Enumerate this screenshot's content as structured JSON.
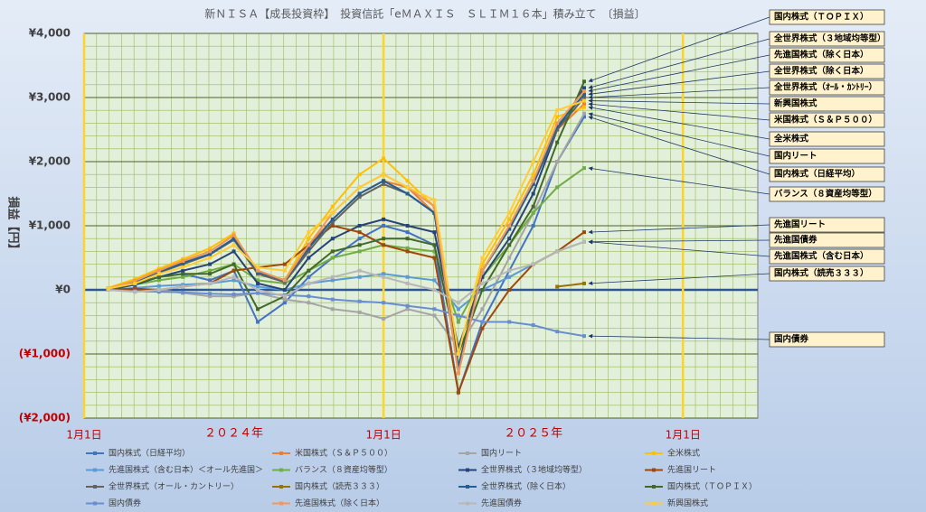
{
  "chart_data": {
    "type": "line",
    "title": "新ＮＩＳＡ【成長投資枠】　投資信託「eＭＡＸＩＳ　ＳＬＩＭ１６本」積み立て　〔損益〕",
    "ylabel": "損益【円】",
    "x": [
      2024.08,
      2024.17,
      2024.25,
      2024.33,
      2024.42,
      2024.5,
      2024.58,
      2024.67,
      2024.75,
      2024.83,
      2024.92,
      2025.0,
      2025.08,
      2025.17,
      2025.25,
      2025.33,
      2025.42,
      2025.5,
      2025.58,
      2025.67
    ],
    "xlim": [
      2024,
      2026.25
    ],
    "xticks": [
      {
        "value": 2024,
        "label": "1月1日"
      },
      {
        "value": 2025,
        "label": "1月1日"
      },
      {
        "value": 2026,
        "label": "1月1日"
      }
    ],
    "year_labels": [
      {
        "value": 2024.5,
        "label": "２０２４年"
      },
      {
        "value": 2025.5,
        "label": "２０２５年"
      }
    ],
    "ylim": [
      -2000,
      4000
    ],
    "yticks": [
      {
        "value": -2000,
        "label": "(¥2,000)"
      },
      {
        "value": -1000,
        "label": "(¥1,000)"
      },
      {
        "value": 0,
        "label": "¥0"
      },
      {
        "value": 1000,
        "label": "¥1,000"
      },
      {
        "value": 2000,
        "label": "¥2,000"
      },
      {
        "value": 3000,
        "label": "¥3,000"
      },
      {
        "value": 4000,
        "label": "¥4,000"
      }
    ],
    "grid": true,
    "series": [
      {
        "name": "国内株式（日経平均）",
        "color": "#4472c4",
        "values": [
          0,
          100,
          200,
          250,
          150,
          300,
          -500,
          -200,
          200,
          500,
          800,
          1000,
          900,
          700,
          -1600,
          -500,
          300,
          1000,
          2000,
          2700
        ]
      },
      {
        "name": "米国株式（Ｓ＆Ｐ５００）",
        "color": "#ed7d31",
        "values": [
          20,
          150,
          300,
          450,
          600,
          850,
          300,
          150,
          700,
          1100,
          1500,
          1700,
          1600,
          1200,
          -1300,
          300,
          1000,
          1700,
          2500,
          2900
        ]
      },
      {
        "name": "国内リート",
        "color": "#a5a5a5",
        "values": [
          0,
          -30,
          0,
          -50,
          -100,
          -100,
          -50,
          -150,
          -200,
          -300,
          -350,
          -450,
          -300,
          -400,
          -900,
          -300,
          500,
          1200,
          2000,
          2750
        ]
      },
      {
        "name": "全米株式",
        "color": "#ffc000",
        "values": [
          30,
          170,
          330,
          480,
          650,
          880,
          250,
          150,
          800,
          1300,
          1800,
          2050,
          1700,
          1300,
          -1200,
          400,
          1100,
          1800,
          2700,
          2850
        ]
      },
      {
        "name": "先進国株式（含む日本）＜オール先進国＞",
        "color": "#5b9bd5",
        "values": [
          0,
          30,
          60,
          80,
          100,
          150,
          50,
          0,
          100,
          150,
          200,
          250,
          200,
          150,
          -300,
          0,
          200,
          400,
          600,
          750
        ]
      },
      {
        "name": "バランス（８資産均等型）",
        "color": "#70ad47",
        "values": [
          10,
          80,
          150,
          200,
          300,
          400,
          150,
          100,
          300,
          500,
          600,
          700,
          650,
          600,
          -500,
          200,
          700,
          1200,
          1600,
          1900
        ]
      },
      {
        "name": "全世界株式（３地域均等型）",
        "color": "#264478",
        "values": [
          0,
          80,
          200,
          300,
          400,
          600,
          100,
          0,
          500,
          800,
          1000,
          1100,
          1000,
          900,
          -900,
          200,
          800,
          1500,
          2500,
          3150
        ]
      },
      {
        "name": "先進国リート",
        "color": "#9e480e",
        "values": [
          0,
          20,
          0,
          50,
          100,
          300,
          350,
          400,
          700,
          1000,
          900,
          700,
          600,
          500,
          -1600,
          -600,
          0,
          400,
          600,
          900
        ]
      },
      {
        "name": "全世界株式（オール・カントリー）",
        "color": "#636363",
        "values": [
          15,
          120,
          270,
          400,
          550,
          780,
          250,
          120,
          600,
          1050,
          1450,
          1650,
          1500,
          1200,
          -1200,
          300,
          950,
          1650,
          2500,
          3000
        ]
      },
      {
        "name": "国内株式（読売３３３）",
        "color": "#997300",
        "values": [
          null,
          null,
          null,
          null,
          null,
          null,
          null,
          null,
          null,
          null,
          null,
          null,
          null,
          null,
          null,
          null,
          null,
          null,
          50,
          100
        ]
      },
      {
        "name": "全世界株式（除く日本）",
        "color": "#255e91",
        "values": [
          15,
          120,
          280,
          420,
          560,
          800,
          280,
          150,
          650,
          1100,
          1500,
          1700,
          1500,
          1200,
          -1200,
          300,
          950,
          1650,
          2550,
          3050
        ]
      },
      {
        "name": "国内株式（ＴＯＰＩＸ）",
        "color": "#43682b",
        "values": [
          0,
          100,
          200,
          250,
          250,
          400,
          -300,
          -100,
          300,
          600,
          700,
          800,
          800,
          700,
          -1000,
          0,
          700,
          1300,
          2300,
          3250
        ]
      },
      {
        "name": "国内債券",
        "color": "#698ed0",
        "values": [
          0,
          -20,
          -30,
          -40,
          -60,
          -70,
          -50,
          -80,
          -100,
          -150,
          -180,
          -200,
          -250,
          -300,
          -400,
          -500,
          -500,
          -550,
          -650,
          -720
        ]
      },
      {
        "name": "先進国株式（除く日本）",
        "color": "#f1975a",
        "values": [
          20,
          140,
          300,
          450,
          600,
          850,
          300,
          150,
          700,
          1200,
          1600,
          1800,
          1600,
          1300,
          -1300,
          300,
          1000,
          1700,
          2600,
          3100
        ]
      },
      {
        "name": "先進国債券",
        "color": "#b7b7b7",
        "values": [
          0,
          -30,
          0,
          50,
          100,
          200,
          0,
          -100,
          100,
          200,
          300,
          200,
          100,
          0,
          -200,
          100,
          300,
          400,
          600,
          750
        ]
      },
      {
        "name": "新興国株式",
        "color": "#ffcd33",
        "values": [
          20,
          100,
          250,
          350,
          500,
          700,
          350,
          300,
          900,
          1200,
          1600,
          1800,
          1600,
          1400,
          -1000,
          500,
          1200,
          2000,
          2800,
          2950
        ]
      }
    ],
    "callouts": [
      "国内株式（ＴＯＰＩＸ）",
      "全世界株式（３地域均等型）",
      "先進国株式（除く日本）",
      "全世界株式（除く日本）",
      "全世界株式（ｵｰﾙ・ｶﾝﾄﾘｰ）",
      "新興国株式",
      "米国株式（Ｓ＆Ｐ５００）",
      "全米株式",
      "国内リート",
      "国内株式（日経平均）",
      "バランス（８資産均等型）",
      "先進国リート",
      "先進国債券",
      "先進国株式（含む日本）",
      "国内株式（読売３３３）",
      "国内債券"
    ]
  }
}
